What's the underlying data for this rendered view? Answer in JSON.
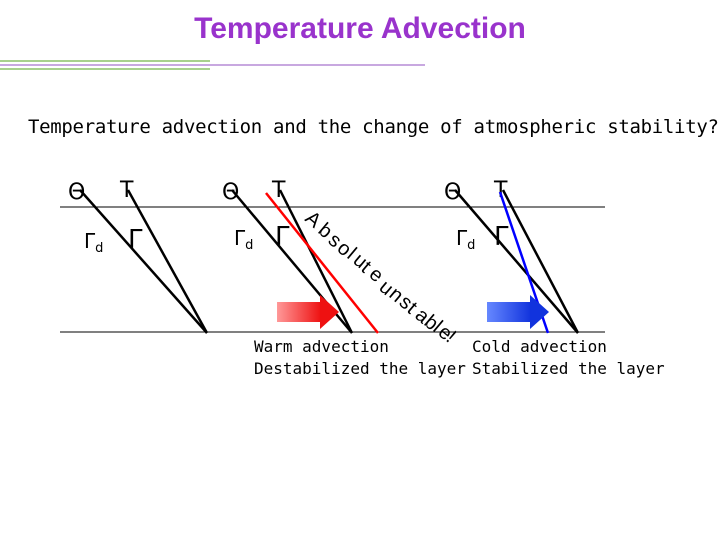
{
  "title": "Temperature Advection",
  "subtitle": "Temperature advection and the change of atmospheric stability?",
  "symbols": {
    "theta": "Θ",
    "temp": "T",
    "gamma_d": "Γ",
    "gamma_d_sub": "d",
    "gamma": "Γ"
  },
  "annotation": [
    "A",
    "b",
    "s",
    "o",
    "l",
    "u",
    "t",
    "e",
    " ",
    "u",
    "n",
    "s",
    "t",
    "a",
    "b",
    "l",
    "e",
    "!"
  ],
  "captions": {
    "warm": {
      "line1": "Warm advection",
      "line2": "Destabilized the layer"
    },
    "cold": {
      "line1": "Cold advection",
      "line2": "Stabilized the layer"
    }
  },
  "colors": {
    "title": "#9933cc",
    "warm_line": "#ff0000",
    "cold_line": "#0000ff",
    "warm_arrow": "#ff3333",
    "cold_arrow": "#2244ff"
  }
}
